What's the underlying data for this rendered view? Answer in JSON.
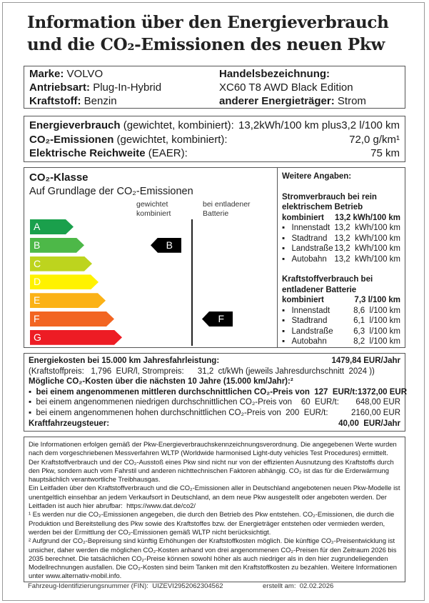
{
  "title": {
    "line1": "Information über den Energieverbrauch",
    "line2": "und die CO₂-Emissionen des neuen Pkw"
  },
  "vehicle": {
    "brand_label": "Marke:",
    "brand": "VOLVO",
    "drive_label": "Antriebsart:",
    "drive": "Plug-In-Hybrid",
    "fuel_label": "Kraftstoff:",
    "fuel": "Benzin",
    "trade_label": "Handelsbezeichnung:",
    "trade": "XC60 T8 AWD Black Edition",
    "other_label": "anderer Energieträger:",
    "other": "Strom"
  },
  "consumption": {
    "energy_label": "Energieverbrauch",
    "energy_note": "(gewichtet, kombiniert):",
    "energy_value": "13,2kWh/100 km plus3,2 l/100 km",
    "co2_label": "CO₂-Emissionen",
    "co2_note": "(gewichtet, kombiniert):",
    "co2_value": "72,0 g/km¹",
    "range_label": "Elektrische Reichweite",
    "range_note": "(EAER):",
    "range_value": "75 km"
  },
  "co2_class": {
    "title": "CO₂-Klasse",
    "subtitle": "Auf Grundlage der CO₂-Emissionen",
    "col1": "gewichtet kombiniert",
    "col2": "bei entladener Batterie",
    "classes": [
      {
        "label": "A",
        "color": "#1aa04c"
      },
      {
        "label": "B",
        "color": "#4db848"
      },
      {
        "label": "C",
        "color": "#bdd41e"
      },
      {
        "label": "D",
        "color": "#fff200"
      },
      {
        "label": "E",
        "color": "#fbb216"
      },
      {
        "label": "F",
        "color": "#f26522"
      },
      {
        "label": "G",
        "color": "#ed1c24"
      }
    ],
    "weighted": "B",
    "discharged": "F"
  },
  "further": {
    "title": "Weitere Angaben:",
    "electric_title": "Stromverbrauch bei rein elektrischem Betrieb",
    "electric_combined_label": "kombiniert",
    "electric_combined": "13,2 kWh/100 km",
    "electric": [
      {
        "label": "Innenstadt",
        "value": "13,2  kWh/100 km"
      },
      {
        "label": "Stadtrand",
        "value": "13,2  kWh/100 km"
      },
      {
        "label": "Landstraße",
        "value": "13,2  kWh/100 km"
      },
      {
        "label": "Autobahn",
        "value": "13,2  kWh/100 km"
      }
    ],
    "fuel_title": "Kraftstoffverbrauch bei entladener Batterie",
    "fuel_combined_label": "kombiniert",
    "fuel_combined": "7,3  l/100 km",
    "fuel": [
      {
        "label": "Innenstadt",
        "value": "8,6  l/100 km"
      },
      {
        "label": "Stadtrand",
        "value": "6,1  l/100 km"
      },
      {
        "label": "Landstraße",
        "value": "6,3  l/100 km"
      },
      {
        "label": "Autobahn",
        "value": "8,2  l/100 km"
      }
    ]
  },
  "costs": {
    "energy_label": "Energiekosten bei 15.000 km Jahresfahrleistung:",
    "energy_value": "1479,84 EUR/Jahr",
    "prices": "(Kraftstoffpreis:   1,796  EUR/l, Strompreis:      31,2  ct/kWh (jeweils Jahresdurchschnitt  2024 ))",
    "co2_title": "Mögliche CO₂-Kosten über die nächsten 10 Jahre (15.000 km/Jahr):²",
    "scenarios": [
      {
        "label": "bei einem angenommenen mittleren durchschnittlichen CO₂-Preis von  127  EUR/t:",
        "value": "1372,00 EUR"
      },
      {
        "label": "bei einem angenommenen niedrigen durchschnittlichen CO₂-Preis von    60  EUR/t:",
        "value": "648,00 EUR"
      },
      {
        "label": "bei einem angenommenen hohen durchschnittlichen CO₂-Preis von  200  EUR/t:",
        "value": "2160,00 EUR"
      }
    ],
    "tax_label": "Kraftfahrzeugsteuer:",
    "tax_value": "40,00  EUR/Jahr"
  },
  "info": {
    "p1": "Die Informationen erfolgen gemäß der Pkw-Energieverbrauchskennzeichnungsverordnung. Die angegebenen Werte wurden nach dem vorgeschriebenen Messverfahren WLTP (Worldwide harmonised Light-duty vehicles Test Procedures) ermittelt. Der Kraftstoffverbrauch und der CO₂-Ausstoß eines Pkw sind nicht nur von der effizienten Ausnutzung des Kraftstoffs durch den Pkw, sondern auch vom Fahrstil und anderen nichttechnischen Faktoren abhängig. CO₂ ist das für die Erderwärmung hauptsächlich verantwortliche Treibhausgas.",
    "p2": "Ein Leitfaden über den Kraftstoffverbrauch und die CO₂-Emissionen aller in Deutschland angebotenen neuen Pkw-Modelle ist unentgeltlich einsehbar an jedem Verkaufsort in Deutschland, an dem neue Pkw ausgestellt oder angeboten werden. Der Leitfaden ist auch hier abrufbar:",
    "link": "https://www.dat.de/co2/",
    "fn1": "¹ Es werden nur die CO₂-Emissionen angegeben, die durch den Betrieb des Pkw entstehen. CO₂-Emissionen, die durch die Produktion und Bereitstellung des Pkw sowie des Kraftstoffes bzw. der Energieträger entstehen oder vermieden werden, werden bei der Ermittlung der CO₂-Emissionen gemäß WLTP nicht berücksichtigt.",
    "fn2": "² Aufgrund der CO₂-Bepreisung sind künftig Erhöhungen der Kraftstoffkosten möglich. Die künftige CO₂-Preisentwicklung ist unsicher, daher werden die möglichen CO₂-Kosten anhand von drei angenommenen CO₂-Preisen für den Zeitraum  2026  bis  2035  berechnet. Die tatsächlichen CO₂-Preise können sowohl höher als auch niedriger als in den hier zugrundeliegenden Modellrechnungen ausfallen. Die CO₂-Kosten sind beim Tanken mit den Kraftstoffkosten zu bezahlen. Weitere Informationen unter www.alternativ-mobil.info."
  },
  "footer": {
    "fin": "Fahrzeug-Identifizierungsnummer (FIN):  UIZEVI2952062304562",
    "created": "erstellt am:  02.02.2026"
  }
}
